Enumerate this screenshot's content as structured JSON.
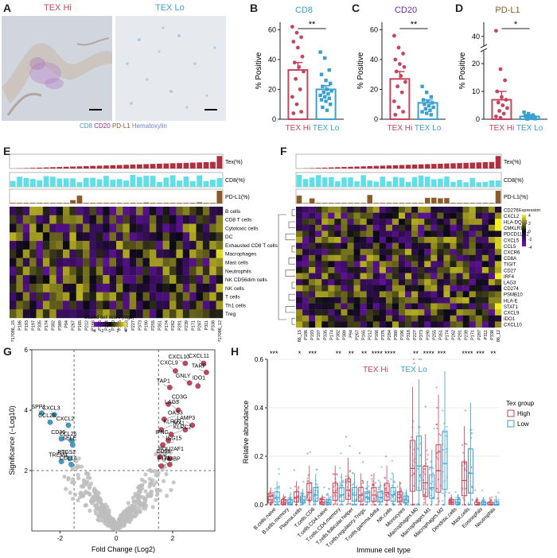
{
  "panels": {
    "A": {
      "letter": "A",
      "left_title": "TEX Hi",
      "right_title": "TEX Lo",
      "stain_legend": [
        {
          "text": "CD8",
          "color": "#4a8fc4"
        },
        {
          "text": "CD20",
          "color": "#8a2a8a"
        },
        {
          "text": "PD-L1",
          "color": "#8b5a2b"
        },
        {
          "text": "Hematoxylin",
          "color": "#6a7fc0"
        }
      ]
    },
    "B": {
      "letter": "B",
      "title": "CD8",
      "title_color": "#3aa0d0"
    },
    "C": {
      "letter": "C",
      "title": "CD20",
      "title_color": "#6a2aa0"
    },
    "D": {
      "letter": "D",
      "title": "PD-L1",
      "title_color": "#8b5a2b"
    },
    "E": {
      "letter": "E"
    },
    "F": {
      "letter": "F"
    },
    "G": {
      "letter": "G"
    },
    "H": {
      "letter": "H"
    }
  },
  "colors": {
    "hi": "#c8445a",
    "lo": "#3aa0d0",
    "teal": "#5fe0e8",
    "brown": "#8b5a2b",
    "red_bar": "#b03040"
  },
  "chart_data": [
    {
      "type": "bar",
      "panel": "B",
      "title": "CD8",
      "ylabel": "% Positive",
      "categories": [
        "TEX Hi",
        "TEX Lo"
      ],
      "values": [
        33,
        20
      ],
      "sem": [
        5,
        2.5
      ],
      "ylim": [
        0,
        65
      ],
      "yticks": [
        0,
        20,
        40,
        60
      ],
      "points": [
        [
          62,
          58,
          55,
          52,
          48,
          42,
          38,
          35,
          32,
          27,
          20,
          15,
          10,
          5,
          4
        ],
        [
          45,
          41,
          33,
          30,
          26,
          24,
          22,
          20,
          19,
          18,
          17,
          16,
          15,
          14,
          13,
          12,
          10,
          8,
          6
        ]
      ],
      "significance": "**"
    },
    {
      "type": "bar",
      "panel": "C",
      "title": "CD20",
      "ylabel": "% Positive",
      "categories": [
        "TEX Hi",
        "TEX Lo"
      ],
      "values": [
        27,
        11
      ],
      "sem": [
        5,
        2
      ],
      "ylim": [
        0,
        65
      ],
      "yticks": [
        0,
        20,
        40,
        60
      ],
      "points": [
        [
          56,
          48,
          44,
          40,
          37,
          35,
          32,
          29,
          25,
          22,
          18,
          12,
          8,
          5,
          3
        ],
        [
          22,
          18,
          15,
          13,
          12,
          11,
          10,
          9,
          8,
          7,
          6,
          5,
          4,
          3
        ]
      ],
      "significance": "**"
    },
    {
      "type": "bar",
      "panel": "D",
      "title": "PD-L1",
      "ylabel": "% Positive",
      "categories": [
        "TEX Hi",
        "TEX Lo"
      ],
      "values": [
        7,
        1
      ],
      "sem": [
        3,
        0.5
      ],
      "ylim": [
        0,
        45
      ],
      "yticks": [
        0,
        10,
        20,
        40
      ],
      "axis_break": [
        22,
        38
      ],
      "points": [
        [
          42,
          18,
          14,
          10,
          8,
          7,
          6,
          5,
          4,
          3,
          2,
          1,
          0.5
        ],
        [
          2.5,
          2,
          1.5,
          1.2,
          1,
          0.8,
          0.5,
          0.3,
          0.2,
          0.1
        ]
      ],
      "significance": "*"
    },
    {
      "type": "heatmap",
      "panel": "E",
      "track_labels": [
        "Tex(%)",
        "CD8(%)",
        "PD-L1(%)"
      ],
      "rows": [
        "B cells",
        "CD8 T cells",
        "Cytotoxic cells",
        "DC",
        "Exhausted CD8 T cells",
        "Macrophages",
        "Mast cells",
        "Neutrophils",
        "NK CD56dim cells",
        "NK cells",
        "T cells",
        "Th1 cells",
        "Treg"
      ],
      "cols": [
        "P17086_15",
        "P186",
        "P193",
        "P197",
        "P335",
        "P174",
        "P382",
        "P389",
        "P94",
        "P267",
        "P165",
        "P212",
        "P166",
        "P376",
        "P284",
        "P380",
        "P196",
        "P318",
        "P227",
        "P373",
        "P190",
        "P255",
        "P351",
        "P174",
        "P262",
        "P291",
        "P239",
        "P171",
        "P287",
        "P311",
        "P338",
        "P17086_12"
      ],
      "legend_title": "Scaled cell score (log2)",
      "legend_ticks": [
        "-4",
        "-2",
        "0",
        "2",
        "4"
      ]
    },
    {
      "type": "heatmap",
      "panel": "F",
      "track_labels": [
        "Tex(%)",
        "CD8(%)",
        "PD-L1(%)"
      ],
      "rows": [
        "CD276",
        "CXCL2",
        "HLA-DQA1",
        "CMKLR1",
        "PDCD1LG2",
        "CXCL5",
        "CCL5",
        "CXCR6",
        "CD8A",
        "TIGIT",
        "CD27",
        "IRF4",
        "LAG3",
        "CD274",
        "PSMB10",
        "HLA-E",
        "STAT1",
        "CXCL9",
        "IDO1",
        "CXCL10"
      ],
      "cols": [
        "P17086_15",
        "P186",
        "P193",
        "P197",
        "P335",
        "P174",
        "P382",
        "P389",
        "P94",
        "P267",
        "P165",
        "P212",
        "P166",
        "P376",
        "P284",
        "P380",
        "P196",
        "P318",
        "P227",
        "P373",
        "P190",
        "P255",
        "P351",
        "P174",
        "P262",
        "P291",
        "P239",
        "P171",
        "P287",
        "P311",
        "P338",
        "P17086_12"
      ],
      "legend_title": "Expression",
      "legend_ticks": [
        "4",
        "2",
        "0",
        "-2",
        "-4"
      ]
    },
    {
      "type": "scatter",
      "panel": "G",
      "xlabel": "Fold Change (Log2)",
      "ylabel": "Significance (−Log10)",
      "xlim": [
        -3,
        3.5
      ],
      "ylim": [
        0,
        6
      ],
      "xticks": [
        -2,
        0,
        2
      ],
      "yticks": [
        2,
        4,
        6
      ],
      "thresholds": {
        "x": [
          -1.5,
          1.5
        ],
        "y": 2
      },
      "labeled_points": [
        {
          "label": "CXCL10",
          "x": 2.45,
          "y": 5.55,
          "group": "up"
        },
        {
          "label": "CXCL11",
          "x": 3.1,
          "y": 5.55,
          "group": "up"
        },
        {
          "label": "CXCL9",
          "x": 2.1,
          "y": 5.3,
          "group": "up"
        },
        {
          "label": "TARP",
          "x": 3.2,
          "y": 5.25,
          "group": "up"
        },
        {
          "label": "GNLY",
          "x": 2.6,
          "y": 4.9,
          "group": "up"
        },
        {
          "label": "IDO1",
          "x": 2.9,
          "y": 4.8,
          "group": "up"
        },
        {
          "label": "TAP1",
          "x": 1.9,
          "y": 4.75,
          "group": "up"
        },
        {
          "label": "CD3G",
          "x": 1.85,
          "y": 4.2,
          "group": "up"
        },
        {
          "label": "LAG3",
          "x": 2.2,
          "y": 4.0,
          "group": "up"
        },
        {
          "label": "OAS3",
          "x": 1.7,
          "y": 3.7,
          "group": "up"
        },
        {
          "label": "LAMP3",
          "x": 2.7,
          "y": 3.5,
          "group": "up"
        },
        {
          "label": "KLRD1",
          "x": 1.6,
          "y": 3.35,
          "group": "up"
        },
        {
          "label": "MX1",
          "x": 2.45,
          "y": 3.35,
          "group": "up"
        },
        {
          "label": "KLRC2",
          "x": 1.95,
          "y": 3.2,
          "group": "up"
        },
        {
          "label": "IFNG",
          "x": 1.85,
          "y": 3.0,
          "group": "up"
        },
        {
          "label": "ISG15",
          "x": 1.65,
          "y": 2.85,
          "group": "up"
        },
        {
          "label": "CD38",
          "x": 1.9,
          "y": 2.4,
          "group": "up"
        },
        {
          "label": "POU2AF1",
          "x": 1.55,
          "y": 2.45,
          "group": "up"
        },
        {
          "label": "IFIT1",
          "x": 1.9,
          "y": 2.2,
          "group": "up"
        },
        {
          "label": "AMBP",
          "x": 1.6,
          "y": 2.15,
          "group": "up"
        },
        {
          "label": "SPP1",
          "x": -2.65,
          "y": 3.9,
          "group": "down"
        },
        {
          "label": "CXCL3",
          "x": -2.2,
          "y": 3.85,
          "group": "down"
        },
        {
          "label": "CCL28",
          "x": -2.35,
          "y": 3.6,
          "group": "down"
        },
        {
          "label": "CXCL2",
          "x": -1.7,
          "y": 3.5,
          "group": "down"
        },
        {
          "label": "CD36",
          "x": -1.95,
          "y": 3.05,
          "group": "down"
        },
        {
          "label": "CCL26",
          "x": -1.6,
          "y": 3.0,
          "group": "down"
        },
        {
          "label": "SELE",
          "x": -1.55,
          "y": 2.85,
          "group": "down"
        },
        {
          "label": "PTGS2",
          "x": -1.65,
          "y": 2.4,
          "group": "down"
        },
        {
          "label": "TREM1",
          "x": -1.95,
          "y": 2.3,
          "group": "down"
        },
        {
          "label": "CCL14",
          "x": -1.6,
          "y": 2.2,
          "group": "down"
        }
      ]
    },
    {
      "type": "box",
      "panel": "H",
      "xlabel": "Immune cell type",
      "ylabel": "Relative abundance",
      "ylim": [
        0,
        0.6
      ],
      "yticks": [
        0.0,
        0.2,
        0.4,
        0.6
      ],
      "legend_title": "Tex group",
      "series": [
        {
          "name": "High"
        },
        {
          "name": "Low"
        }
      ],
      "group_labels": [
        "TEX Hi",
        "TEX Lo"
      ],
      "categories": [
        "B.cells.naive",
        "B.cells.memory",
        "Plasma.cells",
        "T.cells.CD8",
        "T.cells.CD4.naive",
        "T.cells.CD4.memory",
        "T.cells.follicular.helper",
        "T.cells.regulatory.Tregs.",
        "T.cells.gamma.delta",
        "NK.cells",
        "Monocytes",
        "Macrophages.M0",
        "Macrophages.M1",
        "Macrophages.M2",
        "Dendritic.cells",
        "Mast.cells",
        "Eosinophils",
        "Neutrophils"
      ],
      "significance": [
        "***",
        "",
        "*",
        "***",
        "",
        "**",
        "**",
        "**",
        "****",
        "****",
        "",
        "**",
        "****",
        "***",
        "",
        "****",
        "***",
        "**"
      ],
      "high_medians": [
        0.02,
        0.01,
        0.03,
        0.05,
        0.01,
        0.05,
        0.06,
        0.04,
        0.04,
        0.05,
        0.03,
        0.15,
        0.09,
        0.14,
        0.01,
        0.1,
        0.0,
        0.0
      ],
      "low_medians": [
        0.03,
        0.01,
        0.02,
        0.04,
        0.01,
        0.04,
        0.04,
        0.03,
        0.03,
        0.04,
        0.02,
        0.16,
        0.07,
        0.17,
        0.01,
        0.13,
        0.0,
        0.0
      ]
    }
  ]
}
